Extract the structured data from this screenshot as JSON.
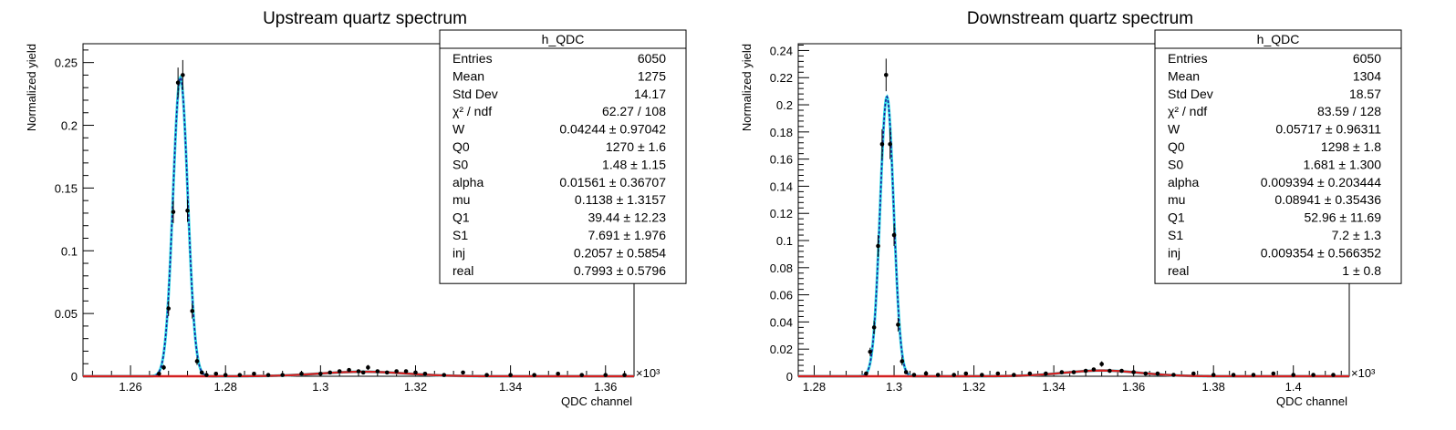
{
  "chart_data": [
    {
      "type": "scatter",
      "title": "Upstream quartz spectrum",
      "xlabel": "QDC channel",
      "ylabel": "Normalized yield",
      "x_multiplier": "×10³",
      "xlim": [
        1.25,
        1.366
      ],
      "ylim": [
        0,
        0.265
      ],
      "x_ticks": [
        1.26,
        1.28,
        1.3,
        1.32,
        1.34,
        1.36
      ],
      "x_tick_labels": [
        "1.26",
        "1.28",
        "1.3",
        "1.32",
        "1.34",
        "1.36"
      ],
      "y_ticks": [
        0,
        0.05,
        0.1,
        0.15,
        0.2,
        0.25
      ],
      "y_tick_labels": [
        "0",
        "0.05",
        "0.1",
        "0.15",
        "0.2",
        "0.25"
      ],
      "series": [
        {
          "type": "points",
          "color": "#000000",
          "x": [
            1.266,
            1.267,
            1.268,
            1.269,
            1.27,
            1.271,
            1.272,
            1.273,
            1.274,
            1.275,
            1.276,
            1.278,
            1.28,
            1.283,
            1.286,
            1.289,
            1.292,
            1.296,
            1.3,
            1.302,
            1.304,
            1.306,
            1.308,
            1.309,
            1.31,
            1.312,
            1.314,
            1.316,
            1.318,
            1.32,
            1.322,
            1.326,
            1.33,
            1.335,
            1.34,
            1.345,
            1.35,
            1.355,
            1.36,
            1.364
          ],
          "y": [
            0.002,
            0.007,
            0.054,
            0.131,
            0.234,
            0.24,
            0.132,
            0.052,
            0.012,
            0.003,
            0.001,
            0.002,
            0.001,
            0.001,
            0.002,
            0.001,
            0.001,
            0.002,
            0.002,
            0.003,
            0.004,
            0.005,
            0.004,
            0.003,
            0.007,
            0.004,
            0.003,
            0.004,
            0.004,
            0.003,
            0.002,
            0.001,
            0.003,
            0.001,
            0.001,
            0.001,
            0.002,
            0.001,
            0.001,
            0.001
          ],
          "err": [
            0.001,
            0.002,
            0.006,
            0.009,
            0.012,
            0.012,
            0.009,
            0.006,
            0.003,
            0.001,
            0.001,
            0.001,
            0.001,
            0.001,
            0.001,
            0.001,
            0.001,
            0.001,
            0.001,
            0.001,
            0.001,
            0.001,
            0.001,
            0.001,
            0.002,
            0.001,
            0.001,
            0.001,
            0.001,
            0.001,
            0.001,
            0.001,
            0.001,
            0.001,
            0.001,
            0.001,
            0.001,
            0.001,
            0.001,
            0.001
          ]
        },
        {
          "type": "curve",
          "color": "#33dde8",
          "peak": 0.238,
          "mean": 1.2705,
          "sigma": 0.00155,
          "bump": {
            "amp": 0.0036,
            "mean": 1.309,
            "sigma": 0.009
          }
        },
        {
          "type": "curve",
          "color": "#1a1a99",
          "dashed": true,
          "peak": 0.238,
          "mean": 1.2705,
          "sigma": 0.00155,
          "bump": {
            "amp": 0.0036,
            "mean": 1.309,
            "sigma": 0.009
          }
        },
        {
          "type": "curve",
          "color": "#d42020",
          "peak": 0,
          "mean": 1.2705,
          "sigma": 0.00155,
          "bump": {
            "amp": 0.0036,
            "mean": 1.309,
            "sigma": 0.009
          }
        }
      ],
      "stats": {
        "header": "h_QDC",
        "rows": [
          [
            "Entries",
            "6050"
          ],
          [
            "Mean",
            "1275"
          ],
          [
            "Std Dev",
            "14.17"
          ],
          [
            "χ² / ndf",
            "62.27 / 108"
          ],
          [
            "W",
            "0.04244 ± 0.97042"
          ],
          [
            "Q0",
            "1270 ± 1.6"
          ],
          [
            "S0",
            "1.48 ± 1.15"
          ],
          [
            "alpha",
            "0.01561 ± 0.36707"
          ],
          [
            "mu",
            "0.1138 ± 1.3157"
          ],
          [
            "Q1",
            "39.44 ± 12.23"
          ],
          [
            "S1",
            "7.691 ± 1.976"
          ],
          [
            "inj",
            "0.2057 ± 0.5854"
          ],
          [
            "real",
            "0.7993 ± 0.5796"
          ]
        ]
      }
    },
    {
      "type": "scatter",
      "title": "Downstream quartz spectrum",
      "xlabel": "QDC channel",
      "ylabel": "Normalized yield",
      "x_multiplier": "×10³",
      "xlim": [
        1.276,
        1.414
      ],
      "ylim": [
        0,
        0.245
      ],
      "x_ticks": [
        1.28,
        1.3,
        1.32,
        1.34,
        1.36,
        1.38,
        1.4
      ],
      "x_tick_labels": [
        "1.28",
        "1.3",
        "1.32",
        "1.34",
        "1.36",
        "1.38",
        "1.4"
      ],
      "y_ticks": [
        0,
        0.02,
        0.04,
        0.06,
        0.08,
        0.1,
        0.12,
        0.14,
        0.16,
        0.18,
        0.2,
        0.22,
        0.24
      ],
      "y_tick_labels": [
        "0",
        "0.02",
        "0.04",
        "0.06",
        "0.08",
        "0.1",
        "0.12",
        "0.14",
        "0.16",
        "0.18",
        "0.2",
        "0.22",
        "0.24"
      ],
      "series": [
        {
          "type": "points",
          "color": "#000000",
          "x": [
            1.293,
            1.294,
            1.295,
            1.296,
            1.297,
            1.298,
            1.299,
            1.3,
            1.301,
            1.302,
            1.303,
            1.305,
            1.308,
            1.311,
            1.315,
            1.318,
            1.322,
            1.326,
            1.33,
            1.334,
            1.338,
            1.342,
            1.345,
            1.348,
            1.35,
            1.352,
            1.354,
            1.357,
            1.36,
            1.363,
            1.366,
            1.37,
            1.375,
            1.38,
            1.385,
            1.39,
            1.395,
            1.4,
            1.405,
            1.41
          ],
          "y": [
            0.002,
            0.018,
            0.036,
            0.096,
            0.171,
            0.222,
            0.171,
            0.104,
            0.038,
            0.011,
            0.003,
            0.001,
            0.002,
            0.001,
            0.001,
            0.002,
            0.001,
            0.002,
            0.001,
            0.002,
            0.002,
            0.003,
            0.003,
            0.004,
            0.005,
            0.009,
            0.004,
            0.004,
            0.003,
            0.002,
            0.002,
            0.001,
            0.002,
            0.001,
            0.001,
            0.001,
            0.002,
            0.001,
            0.001,
            0.001
          ],
          "err": [
            0.001,
            0.003,
            0.005,
            0.008,
            0.011,
            0.012,
            0.011,
            0.008,
            0.005,
            0.003,
            0.001,
            0.001,
            0.001,
            0.001,
            0.001,
            0.001,
            0.001,
            0.001,
            0.001,
            0.001,
            0.001,
            0.001,
            0.001,
            0.001,
            0.001,
            0.002,
            0.001,
            0.001,
            0.001,
            0.001,
            0.001,
            0.001,
            0.001,
            0.001,
            0.001,
            0.001,
            0.001,
            0.001,
            0.001,
            0.001
          ]
        },
        {
          "type": "curve",
          "color": "#33dde8",
          "peak": 0.206,
          "mean": 1.2982,
          "sigma": 0.0017,
          "bump": {
            "amp": 0.0042,
            "mean": 1.352,
            "sigma": 0.0095
          }
        },
        {
          "type": "curve",
          "color": "#1a1a99",
          "dashed": true,
          "peak": 0.206,
          "mean": 1.2982,
          "sigma": 0.0017,
          "bump": {
            "amp": 0.0042,
            "mean": 1.352,
            "sigma": 0.0095
          }
        },
        {
          "type": "curve",
          "color": "#d42020",
          "peak": 0,
          "mean": 1.2982,
          "sigma": 0.0017,
          "bump": {
            "amp": 0.0042,
            "mean": 1.352,
            "sigma": 0.0095
          }
        }
      ],
      "stats": {
        "header": "h_QDC",
        "rows": [
          [
            "Entries",
            "6050"
          ],
          [
            "Mean",
            "1304"
          ],
          [
            "Std Dev",
            "18.57"
          ],
          [
            "χ² / ndf",
            "83.59 / 128"
          ],
          [
            "W",
            "0.05717 ± 0.96311"
          ],
          [
            "Q0",
            "1298 ± 1.8"
          ],
          [
            "S0",
            "1.681 ± 1.300"
          ],
          [
            "alpha",
            "0.009394 ± 0.203444"
          ],
          [
            "mu",
            "0.08941 ± 0.35436"
          ],
          [
            "Q1",
            "52.96 ± 11.69"
          ],
          [
            "S1",
            "7.2 ± 1.3"
          ],
          [
            "inj",
            "0.009354 ± 0.566352"
          ],
          [
            "real",
            "1 ± 0.8"
          ]
        ]
      }
    }
  ]
}
